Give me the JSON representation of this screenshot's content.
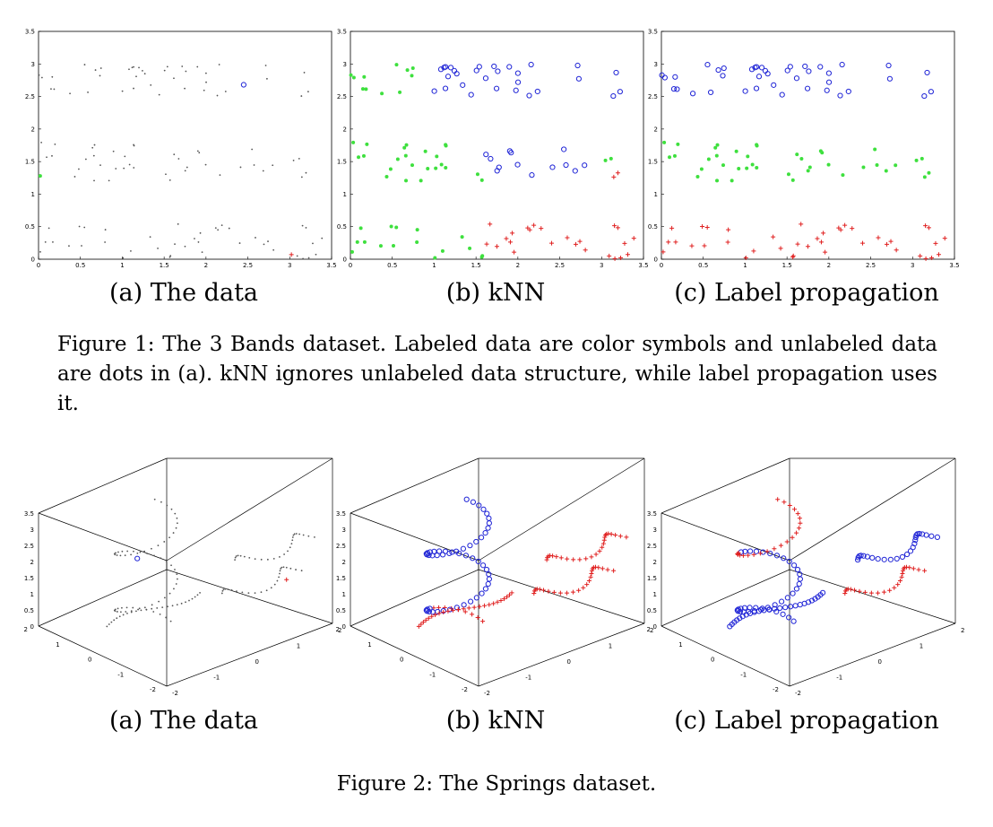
{
  "colors": {
    "class_blue": "#1f24d6",
    "class_green": "#3ee03e",
    "class_red": "#e02020",
    "unlabeled": "#555555",
    "axis": "#000000"
  },
  "figure1": {
    "caption": "Figure 1: The 3 Bands dataset. Labeled data are color symbols and unlabeled data are dots in (a). kNN ignores unlabeled data structure, while label propagation uses it.",
    "subcaptions": [
      "(a) The data",
      "(b) kNN",
      "(c) Label propagation"
    ],
    "x_ticks": [
      "0",
      "0.5",
      "1",
      "1.5",
      "2",
      "2.5",
      "3",
      "3.5"
    ],
    "y_ticks": [
      "0",
      "0.5",
      "1",
      "1.5",
      "2",
      "2.5",
      "3",
      "3.5"
    ]
  },
  "figure2": {
    "caption": "Figure 2: The Springs dataset.",
    "subcaptions": [
      "(a) The data",
      "(b) kNN",
      "(c) Label propagation"
    ],
    "z_ticks": [
      "0",
      "0.5",
      "1",
      "1.5",
      "2",
      "2.5",
      "3",
      "3.5"
    ],
    "y_ticks": [
      "2",
      "1",
      "0",
      "-1",
      "-2"
    ],
    "x_ticks": [
      "-2",
      "-1",
      "0",
      "1",
      "2"
    ]
  },
  "chart_data": [
    {
      "type": "scatter",
      "title": "(a) The data",
      "xlim": [
        0,
        3.5
      ],
      "ylim": [
        0,
        3.5
      ],
      "grid": false,
      "series": [
        {
          "points": [
            [
              2.45,
              2.68
            ]
          ],
          "marker": "circle",
          "color": "#1f24d6"
        },
        {
          "points": [
            [
              0.02,
              1.28
            ]
          ],
          "marker": "dot",
          "color": "#3ee03e"
        },
        {
          "points": [
            [
              3.02,
              0.07
            ]
          ],
          "marker": "plus",
          "color": "#e02020"
        }
      ],
      "unlabeled_bands_y": [
        [
          0.0,
          0.55
        ],
        [
          1.2,
          1.8
        ],
        [
          2.5,
          3.0
        ]
      ]
    },
    {
      "type": "scatter",
      "title": "(b) kNN",
      "xlim": [
        0,
        3.5
      ],
      "ylim": [
        0,
        3.5
      ],
      "grid": false,
      "class_regions": [
        {
          "band_y": [
            2.5,
            3.0
          ],
          "x_range": [
            0.0,
            0.75
          ],
          "marker": "dot",
          "color": "#3ee03e"
        },
        {
          "band_y": [
            2.5,
            3.0
          ],
          "x_range": [
            0.75,
            3.5
          ],
          "marker": "circle",
          "color": "#1f24d6"
        },
        {
          "band_y": [
            1.2,
            1.8
          ],
          "x_range": [
            0.0,
            1.4
          ],
          "marker": "dot",
          "color": "#3ee03e"
        },
        {
          "band_y": [
            1.2,
            1.8
          ],
          "x_range": [
            1.6,
            2.85
          ],
          "marker": "circle",
          "color": "#1f24d6"
        },
        {
          "band_y": [
            1.2,
            1.5
          ],
          "x_range": [
            2.0,
            3.5
          ],
          "marker": "plus",
          "color": "#e02020"
        },
        {
          "band_y": [
            0.0,
            0.55
          ],
          "x_range": [
            0.0,
            1.4
          ],
          "marker": "dot",
          "color": "#3ee03e"
        },
        {
          "band_y": [
            0.0,
            0.55
          ],
          "x_range": [
            1.6,
            3.5
          ],
          "marker": "plus",
          "color": "#e02020"
        }
      ]
    },
    {
      "type": "scatter",
      "title": "(c) Label propagation",
      "xlim": [
        0,
        3.5
      ],
      "ylim": [
        0,
        3.5
      ],
      "grid": false,
      "class_regions": [
        {
          "band_y": [
            2.5,
            3.0
          ],
          "x_range": [
            0.0,
            3.5
          ],
          "marker": "circle",
          "color": "#1f24d6"
        },
        {
          "band_y": [
            1.2,
            1.8
          ],
          "x_range": [
            0.0,
            3.5
          ],
          "marker": "dot",
          "color": "#3ee03e"
        },
        {
          "band_y": [
            0.0,
            0.55
          ],
          "x_range": [
            0.0,
            3.5
          ],
          "marker": "plus",
          "color": "#e02020"
        }
      ]
    },
    {
      "type": "scatter",
      "title": "(a) The data",
      "projection": "3d",
      "zlim": [
        0,
        3.5
      ],
      "xlim": [
        -2,
        2
      ],
      "ylim": [
        -2,
        2
      ],
      "structure": "helix spring plus two horizontal springs; unlabeled dots with one blue circle and one red plus labeled"
    },
    {
      "type": "scatter",
      "title": "(b) kNN",
      "projection": "3d",
      "zlim": [
        0,
        3.5
      ],
      "xlim": [
        -2,
        2
      ],
      "ylim": [
        -2,
        2
      ]
    },
    {
      "type": "scatter",
      "title": "(c) Label propagation",
      "projection": "3d",
      "zlim": [
        0,
        3.5
      ],
      "xlim": [
        -2,
        2
      ],
      "ylim": [
        -2,
        2
      ]
    }
  ]
}
